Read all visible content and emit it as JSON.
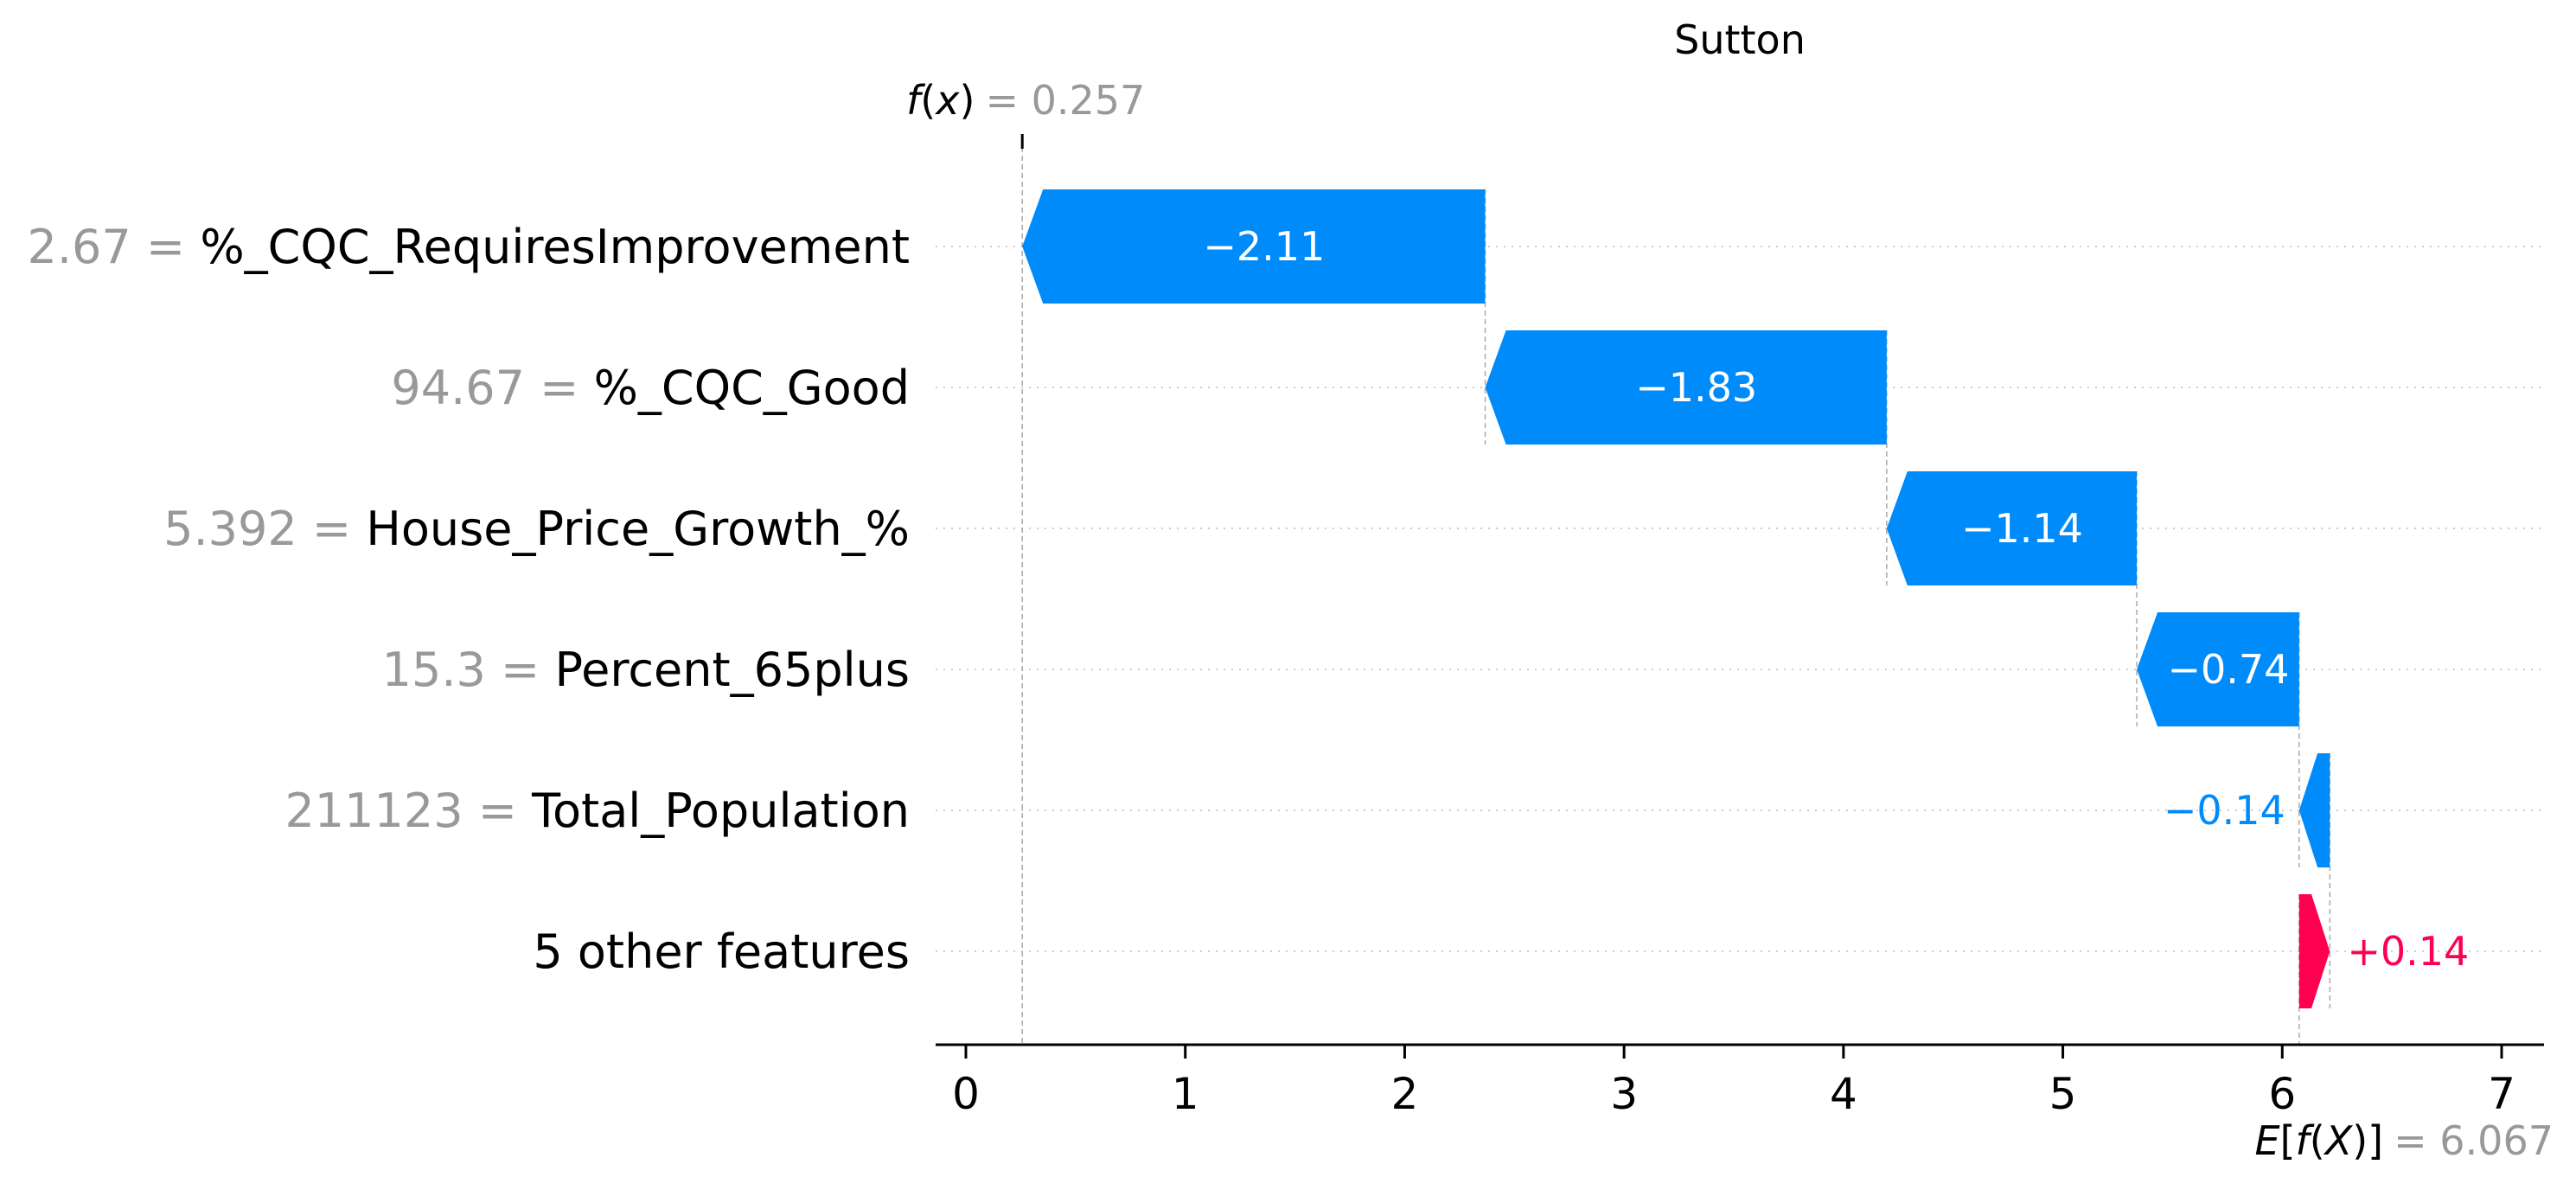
{
  "chart_data": {
    "type": "waterfall",
    "title": "Sutton",
    "base_value": 6.067,
    "base_value_label": "6.067",
    "output_value": 0.257,
    "output_value_label": "0.257",
    "fx_label": {
      "prefix": "f",
      "open": "(",
      "var": "x",
      "close": ")",
      "eq": "= "
    },
    "efx_label": {
      "prefix": "E",
      "open": "[",
      "f": "f",
      "paren_open": "(",
      "var": "X",
      "paren_close": ")",
      "close": "]",
      "eq": "= "
    },
    "xlim": [
      -0.15,
      7.2
    ],
    "xticks": [
      0,
      1,
      2,
      3,
      4,
      5,
      6,
      7
    ],
    "xtick_labels": [
      "0",
      "1",
      "2",
      "3",
      "4",
      "5",
      "6",
      "7"
    ],
    "grid": "dotted-horizontal",
    "colors": {
      "negative": "#008bfb",
      "positive": "#ff0051",
      "value_text": "#999999",
      "axis": "#000000"
    },
    "features": [
      {
        "value": "2.67",
        "name": "%_CQC_RequiresImprovement",
        "contribution": -2.11,
        "label": "−2.11"
      },
      {
        "value": "94.67",
        "name": "%_CQC_Good",
        "contribution": -1.83,
        "label": "−1.83"
      },
      {
        "value": "5.392",
        "name": "House_Price_Growth_%",
        "contribution": -1.14,
        "label": "−1.14"
      },
      {
        "value": "15.3",
        "name": "Percent_65plus",
        "contribution": -0.74,
        "label": "−0.74"
      },
      {
        "value": "211123",
        "name": "Total_Population",
        "contribution": -0.14,
        "label": "−0.14"
      },
      {
        "value": "",
        "name": "5 other features",
        "contribution": 0.14,
        "label": "+0.14"
      }
    ]
  }
}
